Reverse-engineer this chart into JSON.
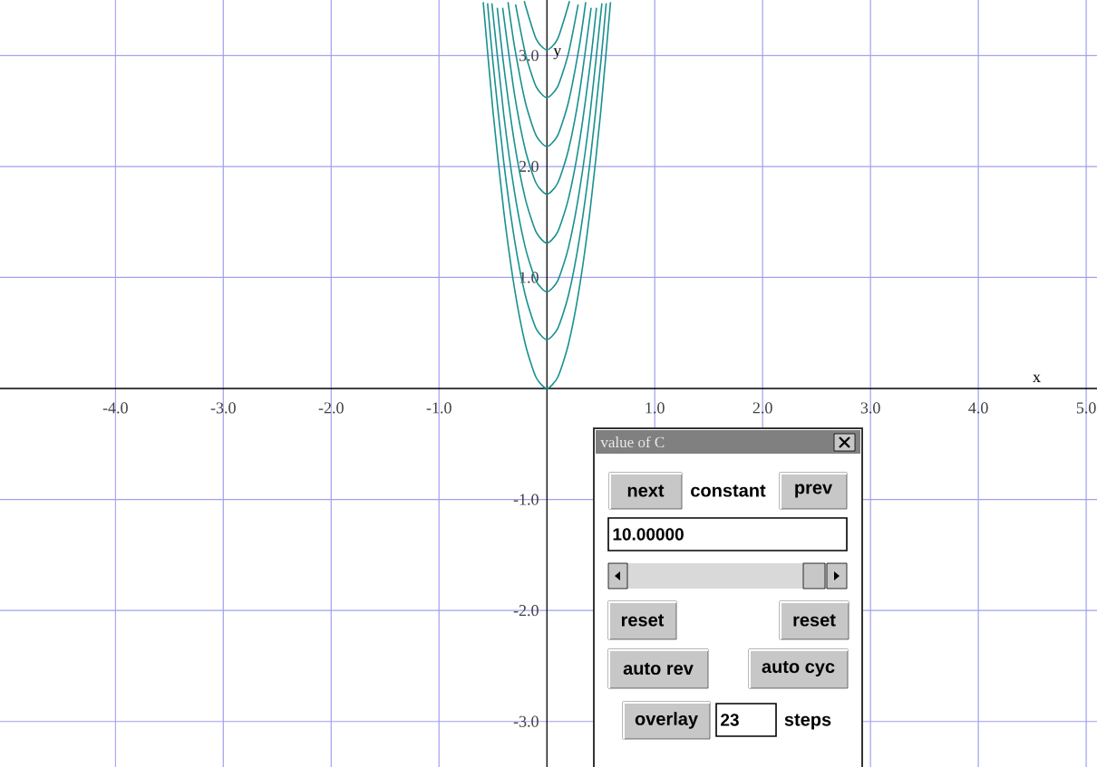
{
  "chart_data": {
    "type": "line",
    "xlabel": "x",
    "ylabel": "y",
    "xlim": [
      -5.07,
      5.1
    ],
    "ylim": [
      -3.41,
      3.5
    ],
    "xticks": [
      {
        "value": -4,
        "label": "-4.0"
      },
      {
        "value": -3,
        "label": "-3.0"
      },
      {
        "value": -2,
        "label": "-2.0"
      },
      {
        "value": -1,
        "label": "-1.0"
      },
      {
        "value": 1,
        "label": "1.0"
      },
      {
        "value": 2,
        "label": "2.0"
      },
      {
        "value": 3,
        "label": "3.0"
      },
      {
        "value": 4,
        "label": "4.0"
      },
      {
        "value": 5,
        "label": "5.0"
      }
    ],
    "yticks": [
      {
        "value": -3,
        "label": "-3.0"
      },
      {
        "value": -2,
        "label": "-2.0"
      },
      {
        "value": -1,
        "label": "-1.0"
      },
      {
        "value": 1,
        "label": "1.0"
      },
      {
        "value": 2,
        "label": "2.0"
      },
      {
        "value": 3,
        "label": "3.0"
      }
    ],
    "grid": true,
    "marker": "none",
    "line_style": "solid",
    "series": [
      {
        "color": "#1a9090",
        "x": [
          -0.59,
          -0.5,
          -0.4,
          -0.3,
          -0.2,
          -0.1,
          0,
          0.1,
          0.2,
          0.3,
          0.4,
          0.5,
          0.59
        ],
        "values": [
          3.48,
          2.5,
          1.6,
          0.9,
          0.4,
          0.1,
          0,
          0.1,
          0.4,
          0.9,
          1.6,
          2.5,
          3.48
        ]
      },
      {
        "color": "#1a9090",
        "x": [
          -0.55,
          -0.5,
          -0.4,
          -0.3,
          -0.2,
          -0.1,
          0,
          0.1,
          0.2,
          0.3,
          0.4,
          0.5,
          0.55
        ],
        "values": [
          3.47,
          2.94,
          2.04,
          1.34,
          0.84,
          0.54,
          0.44,
          0.54,
          0.84,
          1.34,
          2.04,
          2.94,
          3.47
        ]
      },
      {
        "color": "#1a9090",
        "x": [
          -0.51,
          -0.4,
          -0.3,
          -0.2,
          -0.1,
          0,
          0.1,
          0.2,
          0.3,
          0.4,
          0.51
        ],
        "values": [
          3.47,
          2.47,
          1.77,
          1.27,
          0.97,
          0.87,
          0.97,
          1.27,
          1.77,
          2.47,
          3.47
        ]
      },
      {
        "color": "#1a9090",
        "x": [
          -0.46,
          -0.4,
          -0.3,
          -0.2,
          -0.1,
          0,
          0.1,
          0.2,
          0.3,
          0.4,
          0.46
        ],
        "values": [
          3.43,
          2.91,
          2.21,
          1.71,
          1.41,
          1.31,
          1.41,
          1.71,
          2.21,
          2.91,
          3.43
        ]
      },
      {
        "color": "#1a9090",
        "x": [
          -0.41,
          -0.3,
          -0.2,
          -0.1,
          0,
          0.1,
          0.2,
          0.3,
          0.41
        ],
        "values": [
          3.43,
          2.65,
          2.15,
          1.85,
          1.75,
          1.85,
          2.15,
          2.65,
          3.43
        ]
      },
      {
        "color": "#1a9090",
        "x": [
          -0.36,
          -0.3,
          -0.2,
          -0.1,
          0,
          0.1,
          0.2,
          0.3,
          0.36
        ],
        "values": [
          3.48,
          3.08,
          2.58,
          2.28,
          2.18,
          2.28,
          2.58,
          3.08,
          3.48
        ]
      },
      {
        "color": "#1a9090",
        "x": [
          -0.29,
          -0.2,
          -0.1,
          0,
          0.1,
          0.2,
          0.29
        ],
        "values": [
          3.46,
          3.02,
          2.72,
          2.62,
          2.72,
          3.02,
          3.46
        ]
      },
      {
        "color": "#1a9090",
        "x": [
          -0.21,
          -0.1,
          0,
          0.1,
          0.21
        ],
        "values": [
          3.49,
          3.15,
          3.05,
          3.15,
          3.49
        ]
      }
    ],
    "annotations": [
      "value of C",
      "next",
      "constant",
      "prev",
      "10.00000",
      "reset",
      "reset",
      "auto rev",
      "auto cyc",
      "overlay",
      "23",
      "steps"
    ]
  }
}
